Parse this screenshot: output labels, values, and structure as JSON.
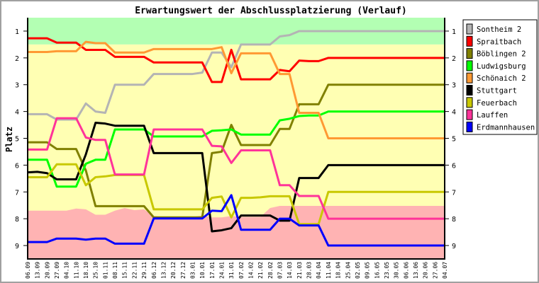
{
  "chart_data": {
    "type": "line",
    "title": "Erwartungswert der Abschlussplatzierung (Verlauf)",
    "xlabel": "",
    "ylabel": "Platz",
    "ylim": [
      9.5,
      0.5
    ],
    "y_inverted": true,
    "yticks": [
      1,
      2,
      3,
      4,
      5,
      6,
      7,
      8,
      9
    ],
    "grid": false,
    "legend_position": "right",
    "categories": [
      "06.09",
      "13.09",
      "20.09",
      "27.09",
      "04.10",
      "11.10",
      "18.10",
      "25.10",
      "01.11",
      "08.11",
      "15.11",
      "22.11",
      "29.11",
      "06.12",
      "13.12",
      "20.12",
      "27.12",
      "03.01",
      "10.01",
      "17.01",
      "24.01",
      "31.01",
      "07.02",
      "14.02",
      "21.02",
      "28.02",
      "07.03",
      "14.03",
      "21.03",
      "28.03",
      "04.04",
      "11.04",
      "18.04",
      "25.04",
      "02.05",
      "09.05",
      "16.05",
      "23.05",
      "30.05",
      "06.06",
      "13.06",
      "20.06",
      "27.06",
      "04.07"
    ],
    "zones": {
      "promotion_color": "#b3ffb3",
      "middle_color": "#ffffb3",
      "relegation_color": "#ffb3b3",
      "promotion_limit": 1.5,
      "relegation_limit": [
        7.7,
        7.7,
        7.7,
        7.7,
        7.7,
        7.62,
        7.65,
        7.85,
        7.85,
        7.7,
        7.6,
        7.68,
        7.65,
        7.9,
        7.93,
        7.93,
        7.93,
        7.93,
        7.88,
        7.95,
        7.95,
        7.9,
        7.93,
        7.93,
        7.93,
        7.6,
        7.52,
        7.52,
        7.52,
        7.52,
        7.52,
        7.52,
        7.52,
        7.52,
        7.52,
        7.52,
        7.52,
        7.52,
        7.52,
        7.52,
        7.52,
        7.52,
        7.52,
        7.52
      ]
    },
    "series": [
      {
        "name": "Sontheim 2",
        "color": "#b4b4b4",
        "values": [
          4.1,
          4.1,
          4.1,
          4.3,
          4.3,
          4.3,
          3.7,
          4.0,
          4.05,
          3.0,
          3.0,
          3.0,
          3.0,
          2.6,
          2.6,
          2.6,
          2.6,
          2.6,
          2.55,
          1.8,
          1.8,
          2.35,
          1.5,
          1.5,
          1.5,
          1.5,
          1.2,
          1.15,
          1.0,
          1.0,
          1.0,
          1.0,
          1.0,
          1.0,
          1.0,
          1.0,
          1.0,
          1.0,
          1.0,
          1.0,
          1.0,
          1.0,
          1.0,
          1.0
        ]
      },
      {
        "name": "Spraitbach",
        "color": "#ff0000",
        "values": [
          1.27,
          1.27,
          1.27,
          1.43,
          1.43,
          1.43,
          1.7,
          1.7,
          1.7,
          1.96,
          1.96,
          1.96,
          1.96,
          2.17,
          2.17,
          2.17,
          2.17,
          2.17,
          2.17,
          2.9,
          2.9,
          1.7,
          2.8,
          2.8,
          2.8,
          2.8,
          2.45,
          2.5,
          2.1,
          2.12,
          2.12,
          2.0,
          2.0,
          2.0,
          2.0,
          2.0,
          2.0,
          2.0,
          2.0,
          2.0,
          2.0,
          2.0,
          2.0,
          2.0
        ]
      },
      {
        "name": "Böblingen 2",
        "color": "#808000",
        "values": [
          5.15,
          5.15,
          5.15,
          5.4,
          5.4,
          5.4,
          6.2,
          7.53,
          7.53,
          7.53,
          7.53,
          7.53,
          7.53,
          7.95,
          7.95,
          7.95,
          7.95,
          7.95,
          7.95,
          5.55,
          5.5,
          4.5,
          5.25,
          5.25,
          5.25,
          5.25,
          4.65,
          4.65,
          3.73,
          3.73,
          3.73,
          3.0,
          3.0,
          3.0,
          3.0,
          3.0,
          3.0,
          3.0,
          3.0,
          3.0,
          3.0,
          3.0,
          3.0,
          3.0
        ]
      },
      {
        "name": "Ludwigsburg",
        "color": "#00ff00",
        "values": [
          5.8,
          5.8,
          5.8,
          6.8,
          6.8,
          6.8,
          5.95,
          5.8,
          5.8,
          4.67,
          4.67,
          4.67,
          4.67,
          4.93,
          4.93,
          4.93,
          4.93,
          4.93,
          4.93,
          4.72,
          4.7,
          4.67,
          4.86,
          4.86,
          4.86,
          4.86,
          4.33,
          4.27,
          4.17,
          4.15,
          4.15,
          4.0,
          4.0,
          4.0,
          4.0,
          4.0,
          4.0,
          4.0,
          4.0,
          4.0,
          4.0,
          4.0,
          4.0,
          4.0
        ]
      },
      {
        "name": "Schönaich 2",
        "color": "#ff9933",
        "values": [
          1.78,
          1.78,
          1.78,
          1.75,
          1.75,
          1.75,
          1.4,
          1.45,
          1.45,
          1.8,
          1.8,
          1.8,
          1.8,
          1.67,
          1.67,
          1.67,
          1.67,
          1.67,
          1.67,
          1.67,
          1.6,
          2.57,
          1.83,
          1.83,
          1.83,
          1.83,
          2.6,
          2.6,
          4.05,
          4.05,
          4.05,
          5.0,
          5.0,
          5.0,
          5.0,
          5.0,
          5.0,
          5.0,
          5.0,
          5.0,
          5.0,
          5.0,
          5.0,
          5.0
        ]
      },
      {
        "name": "Stuttgart",
        "color": "#000000",
        "values": [
          6.27,
          6.25,
          6.3,
          6.53,
          6.53,
          6.53,
          5.6,
          4.42,
          4.45,
          4.53,
          4.53,
          4.53,
          4.53,
          5.55,
          5.55,
          5.55,
          5.55,
          5.55,
          5.55,
          8.47,
          8.43,
          8.35,
          7.88,
          7.88,
          7.88,
          7.88,
          8.07,
          8.07,
          6.48,
          6.48,
          6.48,
          6.0,
          6.0,
          6.0,
          6.0,
          6.0,
          6.0,
          6.0,
          6.0,
          6.0,
          6.0,
          6.0,
          6.0,
          6.0
        ]
      },
      {
        "name": "Feuerbach",
        "color": "#c8c800",
        "values": [
          6.45,
          6.45,
          6.45,
          5.97,
          5.97,
          5.97,
          6.75,
          6.45,
          6.42,
          6.37,
          6.37,
          6.37,
          6.37,
          7.65,
          7.65,
          7.65,
          7.65,
          7.65,
          7.65,
          7.22,
          7.17,
          7.95,
          7.22,
          7.22,
          7.2,
          7.16,
          7.16,
          7.16,
          8.2,
          8.2,
          8.2,
          7.0,
          7.0,
          7.0,
          7.0,
          7.0,
          7.0,
          7.0,
          7.0,
          7.0,
          7.0,
          7.0,
          7.0,
          7.0
        ]
      },
      {
        "name": "Lauffen",
        "color": "#ff3399",
        "values": [
          5.42,
          5.42,
          5.42,
          4.25,
          4.25,
          4.25,
          4.97,
          5.06,
          5.06,
          6.35,
          6.35,
          6.35,
          6.35,
          4.67,
          4.67,
          4.67,
          4.67,
          4.67,
          4.67,
          5.28,
          5.3,
          5.92,
          5.45,
          5.45,
          5.45,
          5.45,
          6.75,
          6.75,
          7.15,
          7.15,
          7.15,
          8.0,
          8.0,
          8.0,
          8.0,
          8.0,
          8.0,
          8.0,
          8.0,
          8.0,
          8.0,
          8.0,
          8.0,
          8.0
        ]
      },
      {
        "name": "Erdmannhausen",
        "color": "#0000ff",
        "values": [
          8.87,
          8.87,
          8.87,
          8.74,
          8.74,
          8.74,
          8.78,
          8.74,
          8.74,
          8.93,
          8.93,
          8.93,
          8.93,
          7.99,
          7.99,
          7.99,
          7.99,
          7.99,
          7.99,
          7.7,
          7.72,
          7.12,
          8.41,
          8.41,
          8.41,
          8.41,
          8.0,
          8.0,
          8.25,
          8.25,
          8.25,
          9.0,
          9.0,
          9.0,
          9.0,
          9.0,
          9.0,
          9.0,
          9.0,
          9.0,
          9.0,
          9.0,
          9.0,
          9.0
        ]
      }
    ]
  }
}
